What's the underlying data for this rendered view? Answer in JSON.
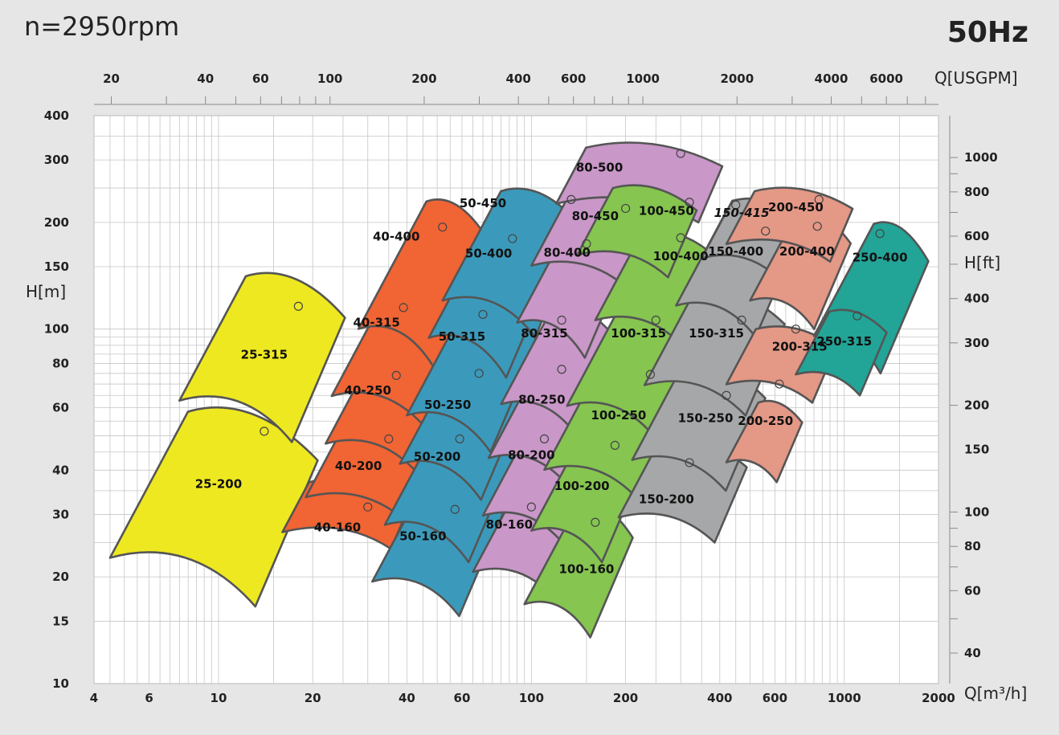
{
  "header": {
    "speed": "n=2950rpm",
    "frequency": "50Hz"
  },
  "colors": {
    "25": "#eee821",
    "40": "#f16434",
    "50": "#3b9abb",
    "80": "#c997c8",
    "100": "#85c550",
    "150": "#a6a7a9",
    "200": "#e49886",
    "250": "#22a497",
    "background": "#e6e6e6",
    "plot_area": "#ffffff"
  },
  "chart_data": {
    "type": "area",
    "title": "",
    "x_scale": "log",
    "y_scale": "log",
    "x_axis": {
      "label": "Q[m³/h]",
      "range": [
        4,
        2000
      ],
      "ticks": [
        4,
        6,
        10,
        20,
        40,
        60,
        100,
        200,
        400,
        600,
        1000,
        2000
      ],
      "tick_labels": [
        "4",
        "6",
        "10",
        "20",
        "40",
        "60",
        "100",
        "200",
        "400",
        "600",
        "1000",
        "2000"
      ]
    },
    "x2_axis": {
      "label": "Q[USGPM]",
      "ticks": [
        20,
        40,
        60,
        100,
        200,
        400,
        600,
        1000,
        2000,
        4000,
        6000
      ],
      "tick_labels": [
        "20",
        "40",
        "60",
        "100",
        "200",
        "400",
        "600",
        "1000",
        "2000",
        "4000",
        "6000"
      ]
    },
    "y_axis": {
      "label": "H[m]",
      "range": [
        10,
        400
      ],
      "ticks": [
        10,
        15,
        20,
        30,
        40,
        60,
        80,
        100,
        150,
        200,
        300,
        400
      ],
      "tick_labels": [
        "10",
        "15",
        "20",
        "30",
        "40",
        "60",
        "80",
        "100",
        "150",
        "200",
        "300",
        "400"
      ]
    },
    "y2_axis": {
      "label": "H[ft]",
      "ticks": [
        40,
        60,
        80,
        100,
        150,
        200,
        300,
        400,
        600,
        800,
        1000
      ],
      "tick_labels": [
        "40",
        "60",
        "80",
        "100",
        "150",
        "200",
        "300",
        "400",
        "600",
        "800",
        "1000"
      ]
    },
    "grid": true,
    "regions": [
      {
        "name": "25-200",
        "family": "25",
        "q_range": [
          4.5,
          18.5
        ],
        "h_range": [
          16.5,
          58.5
        ],
        "label_at": [
          10,
          36.5
        ],
        "bep": [
          14,
          51.5
        ]
      },
      {
        "name": "25-315",
        "family": "25",
        "q_range": [
          7.5,
          23
        ],
        "h_range": [
          48,
          141
        ],
        "label_at": [
          14,
          84.5
        ],
        "bep": [
          18,
          116
        ]
      },
      {
        "name": "40-160",
        "family": "40",
        "q_range": [
          16,
          40
        ],
        "h_range": [
          24,
          37
        ],
        "label_at": [
          24,
          27.5
        ],
        "bep": [
          30,
          31.5
        ]
      },
      {
        "name": "40-200",
        "family": "40",
        "q_range": [
          19,
          46
        ],
        "h_range": [
          29,
          52
        ],
        "label_at": [
          28,
          41
        ],
        "bep": [
          35,
          49
        ]
      },
      {
        "name": "40-250",
        "family": "40",
        "q_range": [
          22,
          54
        ],
        "h_range": [
          39,
          86
        ],
        "label_at": [
          30,
          67
        ],
        "bep": [
          37,
          74
        ]
      },
      {
        "name": "40-315",
        "family": "40",
        "q_range": [
          23,
          59
        ],
        "h_range": [
          52,
          125
        ],
        "label_at": [
          32,
          104
        ],
        "bep": [
          39,
          115
        ]
      },
      {
        "name": "40-400",
        "family": "40",
        "q_range": [
          28,
          67
        ],
        "h_range": [
          76,
          229
        ],
        "label_at": [
          37,
          182
        ],
        "bep": [
          52,
          194
        ]
      },
      {
        "name": "50-160",
        "family": "50",
        "q_range": [
          31,
          75
        ],
        "h_range": [
          15.5,
          38
        ],
        "label_at": [
          45,
          26
        ],
        "bep": [
          57,
          31
        ]
      },
      {
        "name": "50-200",
        "family": "50",
        "q_range": [
          34,
          82
        ],
        "h_range": [
          22,
          58
        ],
        "label_at": [
          50,
          43.5
        ],
        "bep": [
          59,
          49
        ]
      },
      {
        "name": "50-250",
        "family": "50",
        "q_range": [
          38,
          89
        ],
        "h_range": [
          33,
          84
        ],
        "label_at": [
          54,
          61
        ],
        "bep": [
          68,
          75
        ]
      },
      {
        "name": "50-315",
        "family": "50",
        "q_range": [
          40,
          96
        ],
        "h_range": [
          45,
          117
        ],
        "label_at": [
          60,
          95
        ],
        "bep": [
          70,
          110
        ]
      },
      {
        "name": "50-400",
        "family": "50",
        "q_range": [
          47,
          110
        ],
        "h_range": [
          73,
          205
        ],
        "label_at": [
          73,
          163
        ],
        "bep": [
          87,
          180
        ]
      },
      {
        "name": "50-450",
        "family": "50",
        "q_range": [
          52,
          133
        ],
        "h_range": [
          95,
          245
        ],
        "label_at": [
          70,
          226
        ],
        "bep": [
          134,
          232
        ]
      },
      {
        "name": "80-160",
        "family": "80",
        "q_range": [
          65,
          150
        ],
        "h_range": [
          17,
          37
        ],
        "label_at": [
          85,
          28
        ],
        "bep": [
          100,
          31.5
        ]
      },
      {
        "name": "80-200",
        "family": "80",
        "q_range": [
          70,
          165
        ],
        "h_range": [
          24,
          57
        ],
        "label_at": [
          100,
          44
        ],
        "bep": [
          110,
          49
        ]
      },
      {
        "name": "80-250",
        "family": "80",
        "q_range": [
          73,
          170
        ],
        "h_range": [
          35,
          82
        ],
        "label_at": [
          108,
          63
        ],
        "bep": [
          125,
          77
        ]
      },
      {
        "name": "80-315",
        "family": "80",
        "q_range": [
          80,
          175
        ],
        "h_range": [
          50,
          114
        ],
        "label_at": [
          110,
          97
        ],
        "bep": [
          125,
          106
        ]
      },
      {
        "name": "80-400",
        "family": "80",
        "q_range": [
          90,
          190
        ],
        "h_range": [
          83,
          207
        ],
        "label_at": [
          130,
          164
        ],
        "bep": [
          150,
          174
        ]
      },
      {
        "name": "80-450",
        "family": "80",
        "q_range": [
          100,
          240
        ],
        "h_range": [
          130,
          237
        ],
        "label_at": [
          160,
          208
        ],
        "bep": [
          200,
          219
        ]
      },
      {
        "name": "80-500",
        "family": "80",
        "q_range": [
          120,
          390
        ],
        "h_range": [
          200,
          325
        ],
        "label_at": [
          165,
          285
        ],
        "bep": [
          300,
          313
        ]
      },
      {
        "name": "100-160",
        "family": "100",
        "q_range": [
          95,
          195
        ],
        "h_range": [
          13.5,
          32
        ],
        "label_at": [
          150,
          21
        ],
        "bep": [
          160,
          28.5
        ]
      },
      {
        "name": "100-200",
        "family": "100",
        "q_range": [
          100,
          210
        ],
        "h_range": [
          22,
          50
        ],
        "label_at": [
          145,
          36
        ],
        "bep": [
          185,
          47
        ]
      },
      {
        "name": "100-250",
        "family": "100",
        "q_range": [
          110,
          290
        ],
        "h_range": [
          32,
          79
        ],
        "label_at": [
          190,
          57
        ],
        "bep": [
          240,
          74.5
        ]
      },
      {
        "name": "100-315",
        "family": "100",
        "q_range": [
          130,
          330
        ],
        "h_range": [
          48,
          123
        ],
        "label_at": [
          220,
          97
        ],
        "bep": [
          250,
          106
        ]
      },
      {
        "name": "100-400",
        "family": "100",
        "q_range": [
          160,
          380
        ],
        "h_range": [
          88,
          185
        ],
        "label_at": [
          300,
          160
        ],
        "bep": [
          300,
          181
        ]
      },
      {
        "name": "100-450",
        "family": "100",
        "q_range": [
          140,
          320
        ],
        "h_range": [
          140,
          250
        ],
        "label_at": [
          270,
          215
        ],
        "bep": [
          320,
          228
        ]
      },
      {
        "name": "150-200",
        "family": "150",
        "q_range": [
          190,
          460
        ],
        "h_range": [
          25,
          48
        ],
        "label_at": [
          270,
          33
        ],
        "bep": [
          320,
          42
        ]
      },
      {
        "name": "150-250",
        "family": "150",
        "q_range": [
          210,
          520
        ],
        "h_range": [
          35,
          78
        ],
        "label_at": [
          360,
          56
        ],
        "bep": [
          420,
          65
        ]
      },
      {
        "name": "150-315",
        "family": "150",
        "q_range": [
          230,
          600
        ],
        "h_range": [
          57,
          126
        ],
        "label_at": [
          390,
          97
        ],
        "bep": [
          470,
          106
        ]
      },
      {
        "name": "150-400",
        "family": "150",
        "q_range": [
          290,
          650
        ],
        "h_range": [
          95,
          215
        ],
        "label_at": [
          450,
          165
        ],
        "bep": [
          560,
          189
        ]
      },
      {
        "name": "150-415",
        "family": "150",
        "q_range": [
          350,
          700
        ],
        "h_range": [
          140,
          230
        ],
        "label_at": [
          470,
          212
        ],
        "bep": [
          450,
          224
        ]
      },
      {
        "name": "200-250",
        "family": "200",
        "q_range": [
          420,
          700
        ],
        "h_range": [
          37,
          62
        ],
        "label_at": [
          560,
          55
        ],
        "bep": [
          620,
          70
        ]
      },
      {
        "name": "200-315",
        "family": "200",
        "q_range": [
          420,
          900
        ],
        "h_range": [
          62,
          100
        ],
        "label_at": [
          720,
          89
        ],
        "bep": [
          700,
          100
        ]
      },
      {
        "name": "200-400",
        "family": "200",
        "q_range": [
          500,
          980
        ],
        "h_range": [
          100,
          210
        ],
        "label_at": [
          760,
          165
        ],
        "bep": [
          820,
          195
        ]
      },
      {
        "name": "200-450",
        "family": "200",
        "q_range": [
          420,
          1020
        ],
        "h_range": [
          155,
          245
        ],
        "label_at": [
          700,
          220
        ],
        "bep": [
          830,
          232
        ]
      },
      {
        "name": "250-400",
        "family": "250",
        "q_range": [
          800,
          1700
        ],
        "h_range": [
          75,
          198
        ],
        "label_at": [
          1300,
          159
        ],
        "bep": [
          1300,
          186
        ]
      },
      {
        "name": "250-315",
        "family": "250",
        "q_range": [
          700,
          1300
        ],
        "h_range": [
          65,
          112
        ],
        "label_at": [
          1000,
          92
        ],
        "bep": [
          1100,
          109
        ]
      }
    ]
  }
}
